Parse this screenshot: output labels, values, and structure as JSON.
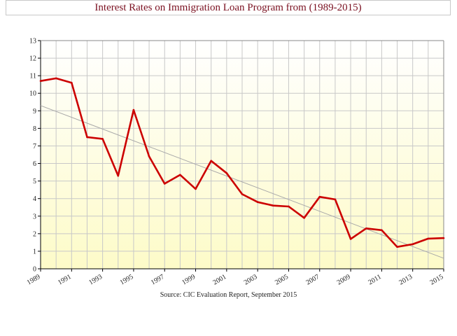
{
  "chart_data": {
    "type": "line",
    "title": "Interest Rates on Immigration Loan Program from (1989-2015)",
    "source": "Source: CIC Evaluation Report, September 2015",
    "xlim": [
      1989,
      2015
    ],
    "ylim": [
      0,
      13
    ],
    "grid": true,
    "x_ticks": [
      "1989",
      "1991",
      "1993",
      "1995",
      "1997",
      "1999",
      "2001",
      "2003",
      "2005",
      "2007",
      "2009",
      "2011",
      "2013",
      "2015"
    ],
    "y_ticks": [
      "0",
      "1",
      "2",
      "3",
      "4",
      "5",
      "6",
      "7",
      "8",
      "9",
      "10",
      "11",
      "12",
      "13"
    ],
    "series": [
      {
        "x": [
          1989,
          1990,
          1991,
          1992,
          1993,
          1994,
          1995,
          1996,
          1997,
          1998,
          1999,
          2000,
          2001,
          2002,
          2003,
          2004,
          2005,
          2006,
          2007,
          2008,
          2009,
          2010,
          2011,
          2012,
          2013,
          2014,
          2015
        ],
        "values": [
          10.7,
          10.85,
          10.6,
          7.5,
          7.4,
          5.3,
          9.05,
          6.4,
          4.85,
          5.35,
          4.55,
          6.15,
          5.45,
          4.25,
          3.8,
          3.6,
          3.55,
          2.9,
          4.1,
          3.95,
          1.7,
          2.3,
          2.2,
          1.25,
          1.4,
          1.72,
          1.75
        ],
        "color": "#cc0000"
      }
    ],
    "trendline": {
      "x": [
        1989,
        2015
      ],
      "values": [
        9.3,
        0.6
      ],
      "color": "#a8a8a8"
    },
    "colors": {
      "plot_top": "#ffffff",
      "plot_bottom": "#fdfbc8",
      "grid": "#c8c8c8"
    }
  }
}
